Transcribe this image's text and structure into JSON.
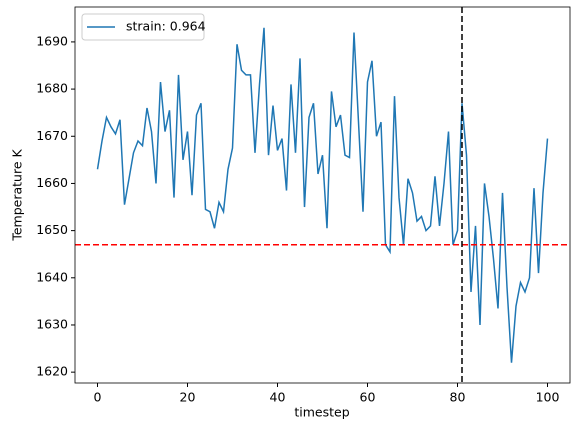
{
  "chart_data": {
    "type": "line",
    "xlabel": "timestep",
    "ylabel": "Temperature K",
    "x": [
      0,
      1,
      2,
      3,
      4,
      5,
      6,
      7,
      8,
      9,
      10,
      11,
      12,
      13,
      14,
      15,
      16,
      17,
      18,
      19,
      20,
      21,
      22,
      23,
      24,
      25,
      26,
      27,
      28,
      29,
      30,
      31,
      32,
      33,
      34,
      35,
      36,
      37,
      38,
      39,
      40,
      41,
      42,
      43,
      44,
      45,
      46,
      47,
      48,
      49,
      50,
      51,
      52,
      53,
      54,
      55,
      56,
      57,
      58,
      59,
      60,
      61,
      62,
      63,
      64,
      65,
      66,
      67,
      68,
      69,
      70,
      71,
      72,
      73,
      74,
      75,
      76,
      77,
      78,
      79,
      80,
      81,
      82,
      83,
      84,
      85,
      86,
      87,
      88,
      89,
      90,
      91,
      92,
      93,
      94,
      95,
      96,
      97,
      98,
      99,
      100
    ],
    "series": [
      {
        "name": "strain: 0.964",
        "color": "#1f77b4",
        "values": [
          1663,
          1669,
          1674,
          1672,
          1670.5,
          1673.5,
          1655.5,
          1661,
          1666.5,
          1669,
          1668,
          1676,
          1671,
          1660,
          1681.5,
          1671,
          1675.5,
          1657,
          1683,
          1665,
          1671,
          1657.5,
          1674.5,
          1677,
          1654.5,
          1654,
          1650.5,
          1656,
          1654,
          1663,
          1667.5,
          1689.5,
          1684,
          1683,
          1683,
          1666.5,
          1681,
          1693,
          1666,
          1676.5,
          1667,
          1669.5,
          1658.5,
          1681,
          1666.5,
          1686.5,
          1655,
          1674,
          1677,
          1662,
          1666,
          1650.5,
          1679.5,
          1672,
          1674.5,
          1666,
          1665.5,
          1692,
          1673,
          1654,
          1681.5,
          1686,
          1670,
          1673,
          1647,
          1645.5,
          1678.5,
          1657,
          1647,
          1661,
          1658,
          1652,
          1653,
          1650,
          1651,
          1661.5,
          1651,
          1660,
          1671,
          1647,
          1650,
          1677,
          1666,
          1637,
          1651,
          1630,
          1660,
          1653,
          1644,
          1633.5,
          1658,
          1638,
          1622,
          1634,
          1639,
          1637,
          1640,
          1659,
          1641,
          1658,
          1669.5
        ]
      }
    ],
    "hline": 1647,
    "hline_color": "#ff0000",
    "vline": 81,
    "vline_color": "#000000",
    "xlim": [
      -5,
      105
    ],
    "ylim": [
      1617.7,
      1697.4
    ],
    "xticks": [
      0,
      20,
      40,
      60,
      80,
      100
    ],
    "yticks": [
      1620,
      1630,
      1640,
      1650,
      1660,
      1670,
      1680,
      1690
    ],
    "legend": "upper left"
  }
}
